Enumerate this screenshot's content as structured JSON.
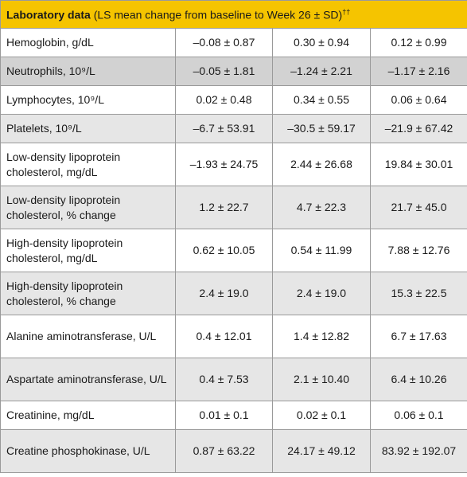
{
  "header": {
    "title_bold": "Laboratory data",
    "title_rest": " (LS mean change from baseline to Week 26 ± SD)",
    "title_mark": "††"
  },
  "rows": [
    {
      "label": "Hemoglobin, g/dL",
      "v1": "–0.08 ± 0.87",
      "v2": "0.30 ± 0.94",
      "v3": "0.12 ± 0.99"
    },
    {
      "label": "Neutrophils, 10⁹/L",
      "v1": "–0.05 ± 1.81",
      "v2": "–1.24 ± 2.21",
      "v3": "–1.17 ± 2.16"
    },
    {
      "label": "Lymphocytes, 10⁹/L",
      "v1": "0.02 ± 0.48",
      "v2": "0.34 ± 0.55",
      "v3": "0.06 ± 0.64"
    },
    {
      "label": "Platelets, 10⁹/L",
      "v1": "–6.7 ± 53.91",
      "v2": "–30.5 ± 59.17",
      "v3": "–21.9 ± 67.42"
    },
    {
      "label": "Low-density lipoprotein cholesterol, mg/dL",
      "v1": "–1.93 ± 24.75",
      "v2": "2.44 ± 26.68",
      "v3": "19.84 ± 30.01"
    },
    {
      "label": "Low-density lipoprotein cholesterol, % change",
      "v1": "1.2 ± 22.7",
      "v2": "4.7 ± 22.3",
      "v3": "21.7 ± 45.0"
    },
    {
      "label": "High-density lipoprotein cholesterol, mg/dL",
      "v1": "0.62 ± 10.05",
      "v2": "0.54 ± 11.99",
      "v3": "7.88 ± 12.76"
    },
    {
      "label": "High-density lipoprotein cholesterol, % change",
      "v1": "2.4 ± 19.0",
      "v2": "2.4 ± 19.0",
      "v3": "15.3 ± 22.5"
    },
    {
      "label": "Alanine aminotransferase, U/L",
      "v1": "0.4 ± 12.01",
      "v2": "1.4 ± 12.82",
      "v3": "6.7 ± 17.63"
    },
    {
      "label": "Aspartate aminotransferase, U/L",
      "v1": "0.4 ± 7.53",
      "v2": "2.1 ± 10.40",
      "v3": "6.4 ± 10.26"
    },
    {
      "label": "Creatinine, mg/dL",
      "v1": "0.01 ± 0.1",
      "v2": "0.02 ± 0.1",
      "v3": "0.06 ± 0.1"
    },
    {
      "label": "Creatine phosphokinase, U/L",
      "v1": "0.87 ± 63.22",
      "v2": "24.17 ± 49.12",
      "v3": "83.92 ± 192.07"
    }
  ]
}
